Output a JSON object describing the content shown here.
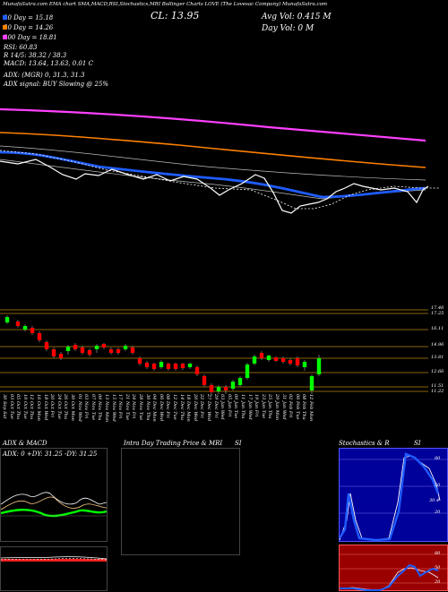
{
  "header": {
    "top_line": "MunafaSutra.com  EMA chart  SMA,MACD,RSI,Stochastics,MRI  Bollinger Charts  LOVE  (The Lovesac Company) MunafaSutra.com",
    "ema20": "20 Day = 15.18",
    "ema50": "50 Day = 14.26",
    "ema200": "200 Day = 18.81",
    "rsi": "RSI: 60.83",
    "stoch": "R 14/5: 38.32 / 38.3",
    "macd": "MACD: 13.64, 13.63, 0.01 C",
    "cl": "CL: 13.95",
    "avg_vol": "Avg Vol: 0.415 M",
    "day_vol": "Day Vol: 0  M",
    "adx": "ADX:                    (MGR) 0, 31.3, 31.3",
    "adx_signal": "ADX  signal:                          BUY Slowing @ 25%"
  },
  "price_levels": [
    "17.46",
    "17.25",
    "16.11",
    "14.96",
    "13.81",
    "12.66",
    "11.51",
    "11.22"
  ],
  "dates": [
    "30 Sep Sat",
    "03 Oct Tue",
    "05 Oct Thu",
    "10 Oct Tue",
    "12 Oct Thu",
    "16 Oct Mon",
    "18 Oct Wed",
    "20 Oct Fri",
    "24 Oct Tue",
    "26 Oct Thu",
    "30 Oct Mon",
    "01 Nov Wed",
    "03 Nov Fri",
    "07 Nov Tue",
    "09 Nov Thu",
    "13 Nov Mon",
    "15 Nov Wed",
    "17 Nov Fri",
    "21 Nov Tue",
    "24 Nov Fri",
    "28 Nov Tue",
    "30 Nov Thu",
    "04 Dec Mon",
    "06 Dec Wed",
    "08 Dec Fri",
    "12 Dec Tue",
    "14 Dec Thu",
    "18 Dec Mon",
    "20 Dec Wed",
    "22 Dec Fri",
    "27 Dec Wed",
    "29 Dec Fri",
    "03 Jan Wed",
    "05 Jan Fri",
    "09 Jan Tue",
    "11 Jan Thu",
    "17 Jan Wed",
    "19 Jan Fri",
    "23 Jan Tue",
    "25 Jan Thu",
    "29 Jan Mon",
    "31 Jan Wed",
    "02 Feb Fri",
    "06 Feb Tue",
    "08 Feb Thu",
    "12 Feb Mon"
  ],
  "panels": {
    "adx_title": "ADX  & MACD",
    "adx_values": "ADX: 0  +DY: 31.25  -DY: 31.25",
    "intraday_title": "Intra  Day Trading Price  & MRI",
    "si1": "SI",
    "stoch_title": "Stochastics & R",
    "si2": "SI",
    "stoch_levels": [
      "80",
      "50",
      "20",
      "30.4"
    ],
    "rsi_levels": [
      "80",
      "50",
      "20"
    ]
  },
  "colors": {
    "ema20": "#1f5cff",
    "ema50": "#ff8000",
    "ema200": "#ff40ff",
    "bull": "#00ff00",
    "bear": "#ff0000"
  }
}
